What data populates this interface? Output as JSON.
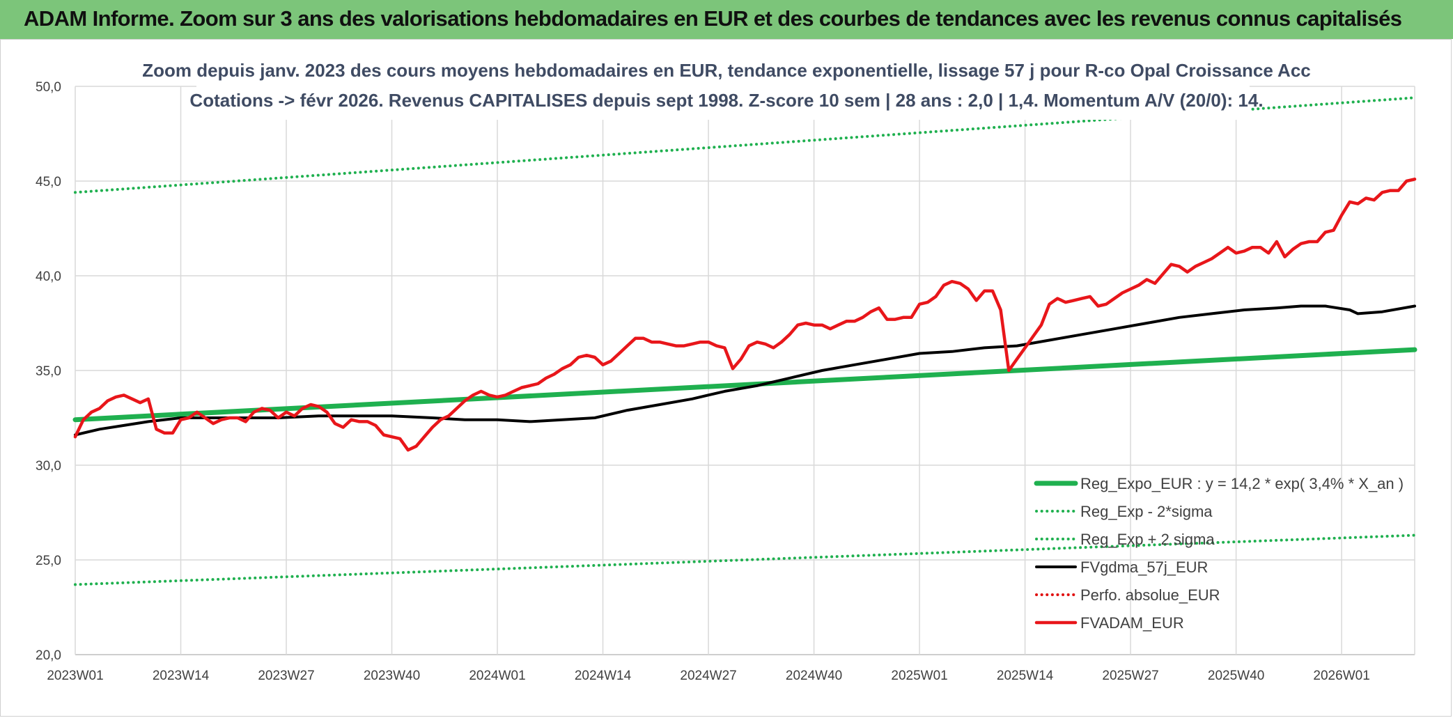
{
  "header": {
    "title": "ADAM Informe. Zoom sur 3 ans des valorisations hebdomadaires en EUR et des courbes de tendances avec les revenus connus capitalisés"
  },
  "chart_data": {
    "type": "line",
    "title_line1": "Zoom depuis janv. 2023 des cours moyens hebdomadaires en EUR, tendance exponentielle, lissage 57 j pour R-co Opal Croissance Acc",
    "title_line2": "Cotations -> févr 2026. Revenus CAPITALISES depuis sept 1998. Z-score 10 sem | 28 ans : 2,0 | 1,4. Momentum A/V (20/0): 14.",
    "x_tick_labels": [
      "2023W01",
      "2023W14",
      "2023W27",
      "2023W40",
      "2024W01",
      "2024W14",
      "2024W27",
      "2024W40",
      "2025W01",
      "2025W14",
      "2025W27",
      "2025W40",
      "2026W01"
    ],
    "y_tick_labels": [
      "20,0",
      "25,0",
      "30,0",
      "35,0",
      "40,0",
      "45,0",
      "50,0"
    ],
    "ylim": [
      20,
      50
    ],
    "xlim": [
      0,
      165
    ],
    "legend_position": "bottom-right",
    "series": [
      {
        "name": "Reg_Expo_EUR : y = 14,2 * exp( 3,4% *  X_an )",
        "color": "#1fb04f",
        "style": "solid-thick",
        "points": [
          [
            0,
            32.4
          ],
          [
            165,
            36.1
          ]
        ]
      },
      {
        "name": "Reg_Exp - 2*sigma",
        "color": "#1fb04f",
        "style": "dotted",
        "points": [
          [
            0,
            23.7
          ],
          [
            165,
            26.3
          ]
        ]
      },
      {
        "name": "Reg_Exp + 2 sigma",
        "color": "#1fb04f",
        "style": "dotted",
        "points": [
          [
            0,
            44.4
          ],
          [
            165,
            49.4
          ]
        ]
      },
      {
        "name": "FVgdma_57j_EUR",
        "color": "#000000",
        "style": "solid",
        "points": [
          [
            0,
            31.6
          ],
          [
            3,
            31.9
          ],
          [
            6,
            32.1
          ],
          [
            9,
            32.3
          ],
          [
            13,
            32.5
          ],
          [
            17,
            32.5
          ],
          [
            20,
            32.5
          ],
          [
            25,
            32.5
          ],
          [
            30,
            32.6
          ],
          [
            35,
            32.6
          ],
          [
            39,
            32.6
          ],
          [
            44,
            32.5
          ],
          [
            48,
            32.4
          ],
          [
            52,
            32.4
          ],
          [
            56,
            32.3
          ],
          [
            60,
            32.4
          ],
          [
            64,
            32.5
          ],
          [
            68,
            32.9
          ],
          [
            72,
            33.2
          ],
          [
            76,
            33.5
          ],
          [
            80,
            33.9
          ],
          [
            84,
            34.2
          ],
          [
            88,
            34.6
          ],
          [
            92,
            35.0
          ],
          [
            96,
            35.3
          ],
          [
            100,
            35.6
          ],
          [
            104,
            35.9
          ],
          [
            108,
            36.0
          ],
          [
            112,
            36.2
          ],
          [
            116,
            36.3
          ],
          [
            120,
            36.6
          ],
          [
            124,
            36.9
          ],
          [
            128,
            37.2
          ],
          [
            132,
            37.5
          ],
          [
            136,
            37.8
          ],
          [
            140,
            38.0
          ],
          [
            144,
            38.2
          ],
          [
            148,
            38.3
          ],
          [
            151,
            38.4
          ],
          [
            154,
            38.4
          ],
          [
            157,
            38.2
          ],
          [
            158,
            38.0
          ],
          [
            161,
            38.1
          ],
          [
            165,
            38.4
          ]
        ]
      },
      {
        "name": "Perfo. absolue_EUR",
        "color": "#e01010",
        "style": "dotted",
        "points": []
      },
      {
        "name": "FVADAM_EUR",
        "color": "#e8161a",
        "style": "solid-thick",
        "points": [
          [
            0,
            31.5
          ],
          [
            1,
            32.4
          ],
          [
            2,
            32.8
          ],
          [
            3,
            33.0
          ],
          [
            4,
            33.4
          ],
          [
            5,
            33.6
          ],
          [
            6,
            33.7
          ],
          [
            7,
            33.5
          ],
          [
            8,
            33.3
          ],
          [
            9,
            33.5
          ],
          [
            10,
            31.9
          ],
          [
            11,
            31.7
          ],
          [
            12,
            31.7
          ],
          [
            13,
            32.4
          ],
          [
            14,
            32.5
          ],
          [
            15,
            32.8
          ],
          [
            16,
            32.5
          ],
          [
            17,
            32.2
          ],
          [
            18,
            32.4
          ],
          [
            19,
            32.5
          ],
          [
            20,
            32.5
          ],
          [
            21,
            32.3
          ],
          [
            22,
            32.8
          ],
          [
            23,
            33.0
          ],
          [
            24,
            32.9
          ],
          [
            25,
            32.5
          ],
          [
            26,
            32.8
          ],
          [
            27,
            32.6
          ],
          [
            28,
            33.0
          ],
          [
            29,
            33.2
          ],
          [
            30,
            33.1
          ],
          [
            31,
            32.8
          ],
          [
            32,
            32.2
          ],
          [
            33,
            32.0
          ],
          [
            34,
            32.4
          ],
          [
            35,
            32.3
          ],
          [
            36,
            32.3
          ],
          [
            37,
            32.1
          ],
          [
            38,
            31.6
          ],
          [
            39,
            31.5
          ],
          [
            40,
            31.4
          ],
          [
            41,
            30.8
          ],
          [
            42,
            31.0
          ],
          [
            43,
            31.5
          ],
          [
            44,
            32.0
          ],
          [
            45,
            32.4
          ],
          [
            46,
            32.6
          ],
          [
            47,
            33.0
          ],
          [
            48,
            33.4
          ],
          [
            49,
            33.7
          ],
          [
            50,
            33.9
          ],
          [
            51,
            33.7
          ],
          [
            52,
            33.6
          ],
          [
            53,
            33.7
          ],
          [
            54,
            33.9
          ],
          [
            55,
            34.1
          ],
          [
            56,
            34.2
          ],
          [
            57,
            34.3
          ],
          [
            58,
            34.6
          ],
          [
            59,
            34.8
          ],
          [
            60,
            35.1
          ],
          [
            61,
            35.3
          ],
          [
            62,
            35.7
          ],
          [
            63,
            35.8
          ],
          [
            64,
            35.7
          ],
          [
            65,
            35.3
          ],
          [
            66,
            35.5
          ],
          [
            67,
            35.9
          ],
          [
            68,
            36.3
          ],
          [
            69,
            36.7
          ],
          [
            70,
            36.7
          ],
          [
            71,
            36.5
          ],
          [
            72,
            36.5
          ],
          [
            73,
            36.4
          ],
          [
            74,
            36.3
          ],
          [
            75,
            36.3
          ],
          [
            76,
            36.4
          ],
          [
            77,
            36.5
          ],
          [
            78,
            36.5
          ],
          [
            79,
            36.3
          ],
          [
            80,
            36.2
          ],
          [
            81,
            35.1
          ],
          [
            82,
            35.6
          ],
          [
            83,
            36.3
          ],
          [
            84,
            36.5
          ],
          [
            85,
            36.4
          ],
          [
            86,
            36.2
          ],
          [
            87,
            36.5
          ],
          [
            88,
            36.9
          ],
          [
            89,
            37.4
          ],
          [
            90,
            37.5
          ],
          [
            91,
            37.4
          ],
          [
            92,
            37.4
          ],
          [
            93,
            37.2
          ],
          [
            94,
            37.4
          ],
          [
            95,
            37.6
          ],
          [
            96,
            37.6
          ],
          [
            97,
            37.8
          ],
          [
            98,
            38.1
          ],
          [
            99,
            38.3
          ],
          [
            100,
            37.7
          ],
          [
            101,
            37.7
          ],
          [
            102,
            37.8
          ],
          [
            103,
            37.8
          ],
          [
            104,
            38.5
          ],
          [
            105,
            38.6
          ],
          [
            106,
            38.9
          ],
          [
            107,
            39.5
          ],
          [
            108,
            39.7
          ],
          [
            109,
            39.6
          ],
          [
            110,
            39.3
          ],
          [
            111,
            38.7
          ],
          [
            112,
            39.2
          ],
          [
            113,
            39.2
          ],
          [
            114,
            38.2
          ],
          [
            115,
            35.0
          ],
          [
            116,
            35.6
          ],
          [
            117,
            36.2
          ],
          [
            118,
            36.8
          ],
          [
            119,
            37.4
          ],
          [
            120,
            38.5
          ],
          [
            121,
            38.8
          ],
          [
            122,
            38.6
          ],
          [
            123,
            38.7
          ],
          [
            124,
            38.8
          ],
          [
            125,
            38.9
          ],
          [
            126,
            38.4
          ],
          [
            127,
            38.5
          ],
          [
            128,
            38.8
          ],
          [
            129,
            39.1
          ],
          [
            130,
            39.3
          ],
          [
            131,
            39.5
          ],
          [
            132,
            39.8
          ],
          [
            133,
            39.6
          ],
          [
            134,
            40.1
          ],
          [
            135,
            40.6
          ],
          [
            136,
            40.5
          ],
          [
            137,
            40.2
          ],
          [
            138,
            40.5
          ],
          [
            139,
            40.7
          ],
          [
            140,
            40.9
          ],
          [
            141,
            41.2
          ],
          [
            142,
            41.5
          ],
          [
            143,
            41.2
          ],
          [
            144,
            41.3
          ],
          [
            145,
            41.5
          ],
          [
            146,
            41.5
          ],
          [
            147,
            41.2
          ],
          [
            148,
            41.8
          ],
          [
            149,
            41.0
          ],
          [
            150,
            41.4
          ],
          [
            151,
            41.7
          ],
          [
            152,
            41.8
          ],
          [
            153,
            41.8
          ],
          [
            154,
            42.3
          ],
          [
            155,
            42.4
          ],
          [
            156,
            43.2
          ],
          [
            157,
            43.9
          ],
          [
            158,
            43.8
          ],
          [
            159,
            44.1
          ],
          [
            160,
            44.0
          ],
          [
            161,
            44.4
          ],
          [
            162,
            44.5
          ],
          [
            163,
            44.5
          ],
          [
            164,
            45.0
          ],
          [
            165,
            45.1
          ]
        ]
      }
    ]
  }
}
